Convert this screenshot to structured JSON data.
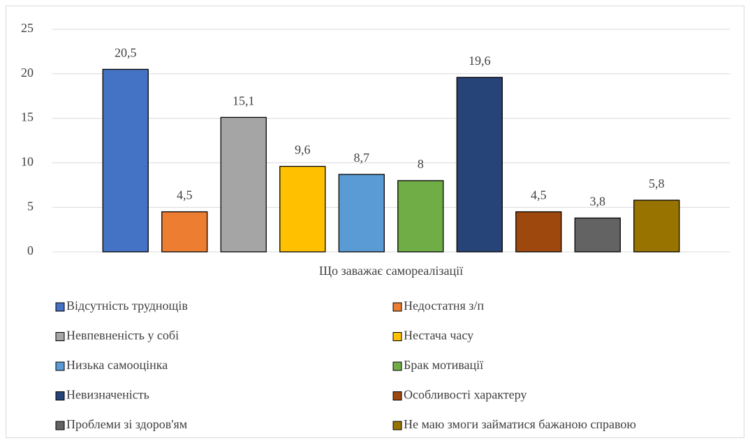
{
  "chart_data": {
    "type": "bar",
    "categories": [
      "Що заважає самореалізації"
    ],
    "ylim": [
      0,
      25
    ],
    "yticks": [
      0,
      5,
      10,
      15,
      20,
      25
    ],
    "grid": true,
    "legend": "bottom",
    "series": [
      {
        "name": "Відсутність труднощів",
        "color": "#4472c4",
        "values": [
          20.5
        ],
        "value_labels": [
          "20,5"
        ]
      },
      {
        "name": "Недостатня з/п",
        "color": "#ed7d31",
        "values": [
          4.5
        ],
        "value_labels": [
          "4,5"
        ]
      },
      {
        "name": "Невпевненість у собі",
        "color": "#a5a5a5",
        "values": [
          15.1
        ],
        "value_labels": [
          "15,1"
        ]
      },
      {
        "name": "Нестача часу",
        "color": "#ffc000",
        "values": [
          9.6
        ],
        "value_labels": [
          "9,6"
        ]
      },
      {
        "name": "Низька самооцінка",
        "color": "#5b9bd5",
        "values": [
          8.7
        ],
        "value_labels": [
          "8,7"
        ]
      },
      {
        "name": "Брак мотивації",
        "color": "#70ad47",
        "values": [
          8
        ]
      },
      {
        "name": "Невизначеність",
        "color": "#264478",
        "values": [
          19.6
        ],
        "value_labels": [
          "19,6"
        ]
      },
      {
        "name": "Особливості характеру",
        "color": "#9e480e",
        "values": [
          4.5
        ],
        "value_labels": [
          "4,5"
        ]
      },
      {
        "name": "Проблеми зі здоров'ям",
        "color": "#636363",
        "values": [
          3.8
        ],
        "value_labels": [
          "3,8"
        ]
      },
      {
        "name": "Не маю змоги займатися бажаною справою",
        "color": "#997300",
        "values": [
          5.8
        ],
        "value_labels": [
          "5,8"
        ]
      }
    ]
  }
}
